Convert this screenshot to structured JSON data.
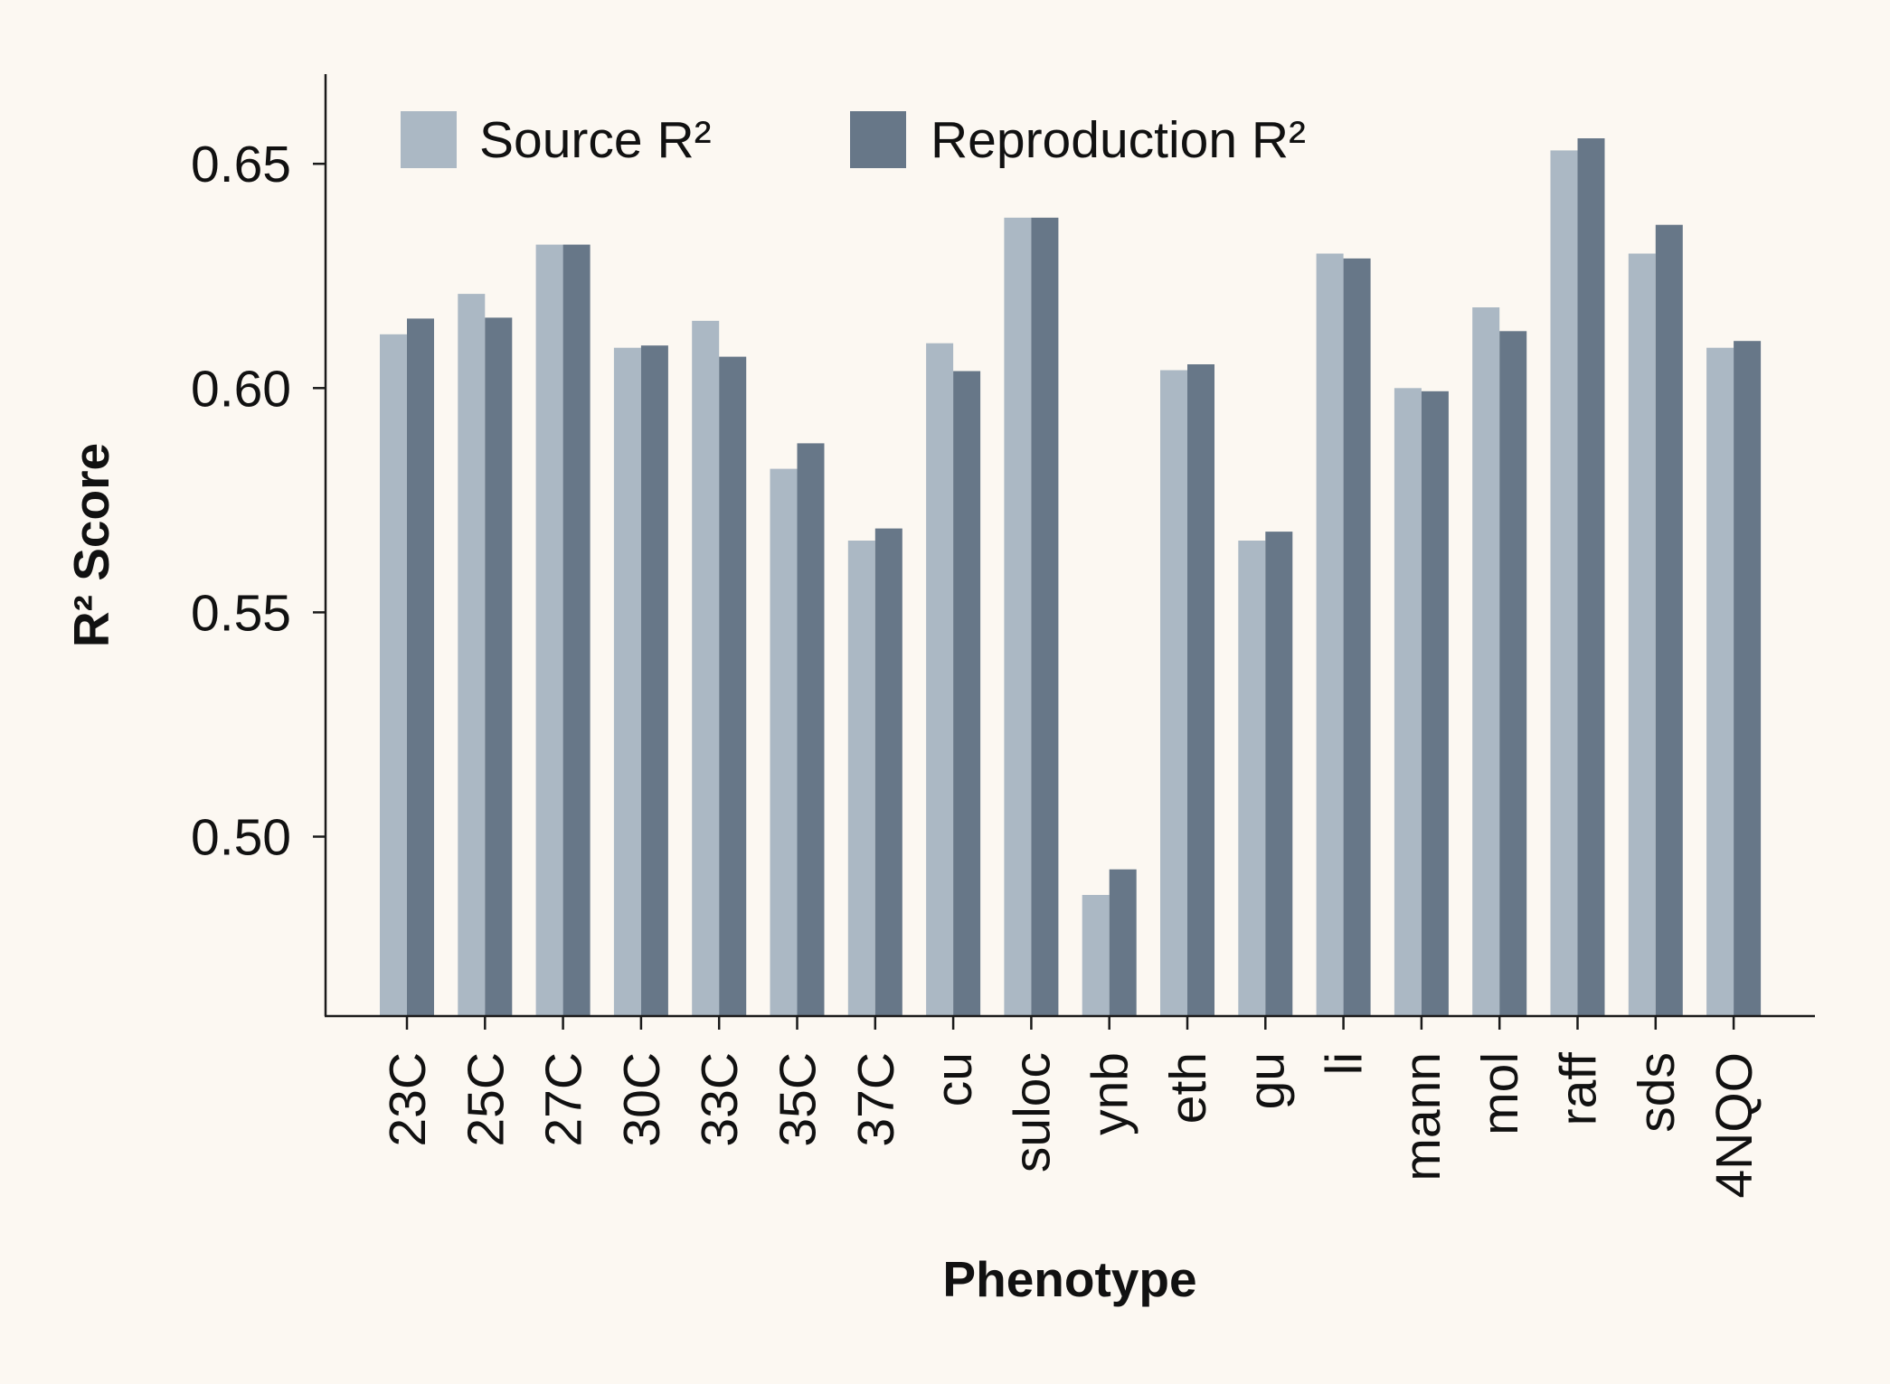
{
  "chart_data": {
    "type": "bar",
    "title": "",
    "xlabel": "Phenotype",
    "ylabel": "R² Score",
    "ylim": [
      0.46,
      0.67
    ],
    "yticks": [
      0.5,
      0.55,
      0.6,
      0.65
    ],
    "ytick_labels": [
      "0.50",
      "0.55",
      "0.60",
      "0.65"
    ],
    "grid": false,
    "legend_position": "top-left",
    "categories": [
      "23C",
      "25C",
      "27C",
      "30C",
      "33C",
      "35C",
      "37C",
      "cu",
      "suloc",
      "ynb",
      "eth",
      "gu",
      "li",
      "mann",
      "mol",
      "raff",
      "sds",
      "4NQO"
    ],
    "series": [
      {
        "name": "Source R²",
        "color": "#abb8c4",
        "values": [
          0.612,
          0.621,
          0.632,
          0.609,
          0.615,
          0.582,
          0.566,
          0.61,
          0.638,
          0.487,
          0.604,
          0.566,
          0.63,
          0.6,
          0.618,
          0.653,
          0.63,
          0.609
        ]
      },
      {
        "name": "Reproduction R²",
        "color": "#677788",
        "values": [
          0.6155,
          0.6157,
          0.632,
          0.6095,
          0.607,
          0.5877,
          0.5687,
          0.6038,
          0.638,
          0.4927,
          0.6053,
          0.568,
          0.6289,
          0.5993,
          0.6127,
          0.6557,
          0.6364,
          0.6105
        ]
      }
    ]
  }
}
